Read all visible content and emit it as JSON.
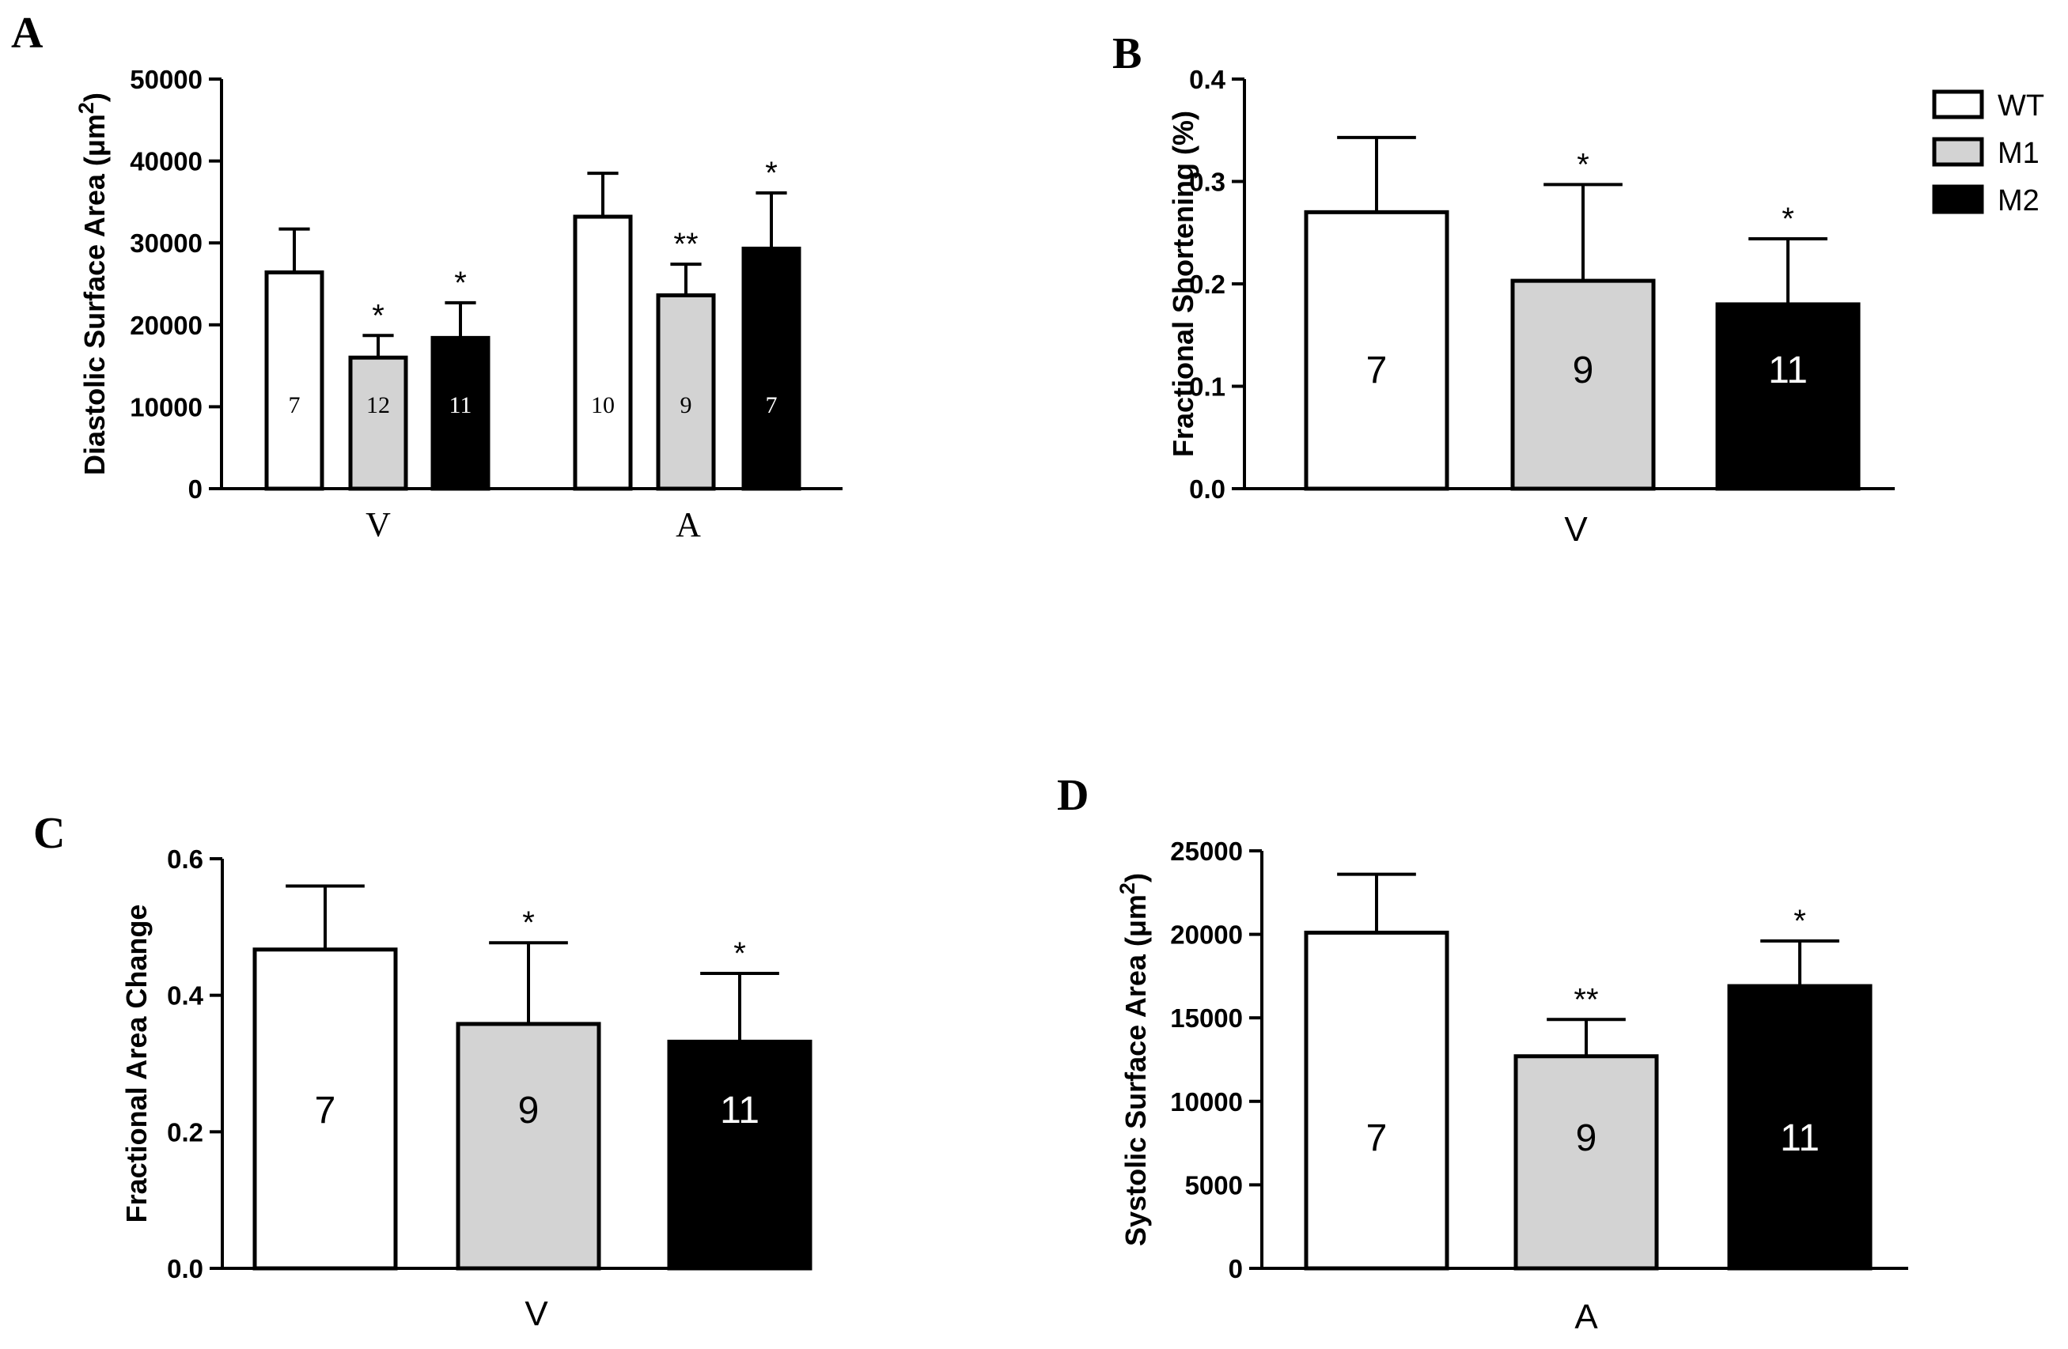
{
  "legend": {
    "items": [
      {
        "label": "WT",
        "color": "#ffffff"
      },
      {
        "label": "M1",
        "color": "#d3d3d3"
      },
      {
        "label": "M2",
        "color": "#000000"
      }
    ],
    "placement": "top-right"
  },
  "chart_data": [
    {
      "panel": "A",
      "type": "bar",
      "ylabel": "Diastolic Surface Area (μm",
      "ylabel_sup": "2",
      "ylabel_close": ")",
      "ylim": [
        0,
        50000
      ],
      "yticks": [
        0,
        10000,
        20000,
        30000,
        40000,
        50000
      ],
      "ytick_labels": [
        "0",
        "10000",
        "20000",
        "30000",
        "40000",
        "50000"
      ],
      "groups": [
        "V",
        "A"
      ],
      "bars": [
        {
          "group": "V",
          "series": "WT",
          "value": 26400,
          "error": 5300,
          "n": "7",
          "sig": ""
        },
        {
          "group": "V",
          "series": "M1",
          "value": 16000,
          "error": 2700,
          "n": "12",
          "sig": "*"
        },
        {
          "group": "V",
          "series": "M2",
          "value": 18400,
          "error": 4300,
          "n": "11",
          "sig": "*"
        },
        {
          "group": "A",
          "series": "WT",
          "value": 33200,
          "error": 5300,
          "n": "10",
          "sig": ""
        },
        {
          "group": "A",
          "series": "M1",
          "value": 23600,
          "error": 3800,
          "n": "9",
          "sig": "**"
        },
        {
          "group": "A",
          "series": "M2",
          "value": 29300,
          "error": 6800,
          "n": "7",
          "sig": "*"
        }
      ]
    },
    {
      "panel": "B",
      "type": "bar",
      "ylabel": "Fractional Shortening (%)",
      "ylim": [
        0,
        0.4
      ],
      "yticks": [
        0,
        0.1,
        0.2,
        0.3,
        0.4
      ],
      "ytick_labels": [
        "0.0",
        "0.1",
        "0.2",
        "0.3",
        "0.4"
      ],
      "groups": [
        "V"
      ],
      "bars": [
        {
          "group": "V",
          "series": "WT",
          "value": 0.27,
          "error": 0.073,
          "n": "7",
          "sig": ""
        },
        {
          "group": "V",
          "series": "M1",
          "value": 0.203,
          "error": 0.094,
          "n": "9",
          "sig": "*"
        },
        {
          "group": "V",
          "series": "M2",
          "value": 0.18,
          "error": 0.064,
          "n": "11",
          "sig": "*"
        }
      ]
    },
    {
      "panel": "C",
      "type": "bar",
      "ylabel": "Fractional Area Change",
      "ylim": [
        0,
        0.6
      ],
      "yticks": [
        0,
        0.2,
        0.4,
        0.6
      ],
      "ytick_labels": [
        "0.0",
        "0.2",
        "0.4",
        "0.6"
      ],
      "groups": [
        "V"
      ],
      "bars": [
        {
          "group": "V",
          "series": "WT",
          "value": 0.467,
          "error": 0.093,
          "n": "7",
          "sig": ""
        },
        {
          "group": "V",
          "series": "M1",
          "value": 0.358,
          "error": 0.119,
          "n": "9",
          "sig": "*"
        },
        {
          "group": "V",
          "series": "M2",
          "value": 0.332,
          "error": 0.1,
          "n": "11",
          "sig": "*"
        }
      ]
    },
    {
      "panel": "D",
      "type": "bar",
      "ylabel": "Systolic Surface Area (μm",
      "ylabel_sup": "2",
      "ylabel_close": ")",
      "ylim": [
        0,
        25000
      ],
      "yticks": [
        0,
        5000,
        10000,
        15000,
        20000,
        25000
      ],
      "ytick_labels": [
        "0",
        "5000",
        "10000",
        "15000",
        "20000",
        "25000"
      ],
      "groups": [
        "A"
      ],
      "bars": [
        {
          "group": "A",
          "series": "WT",
          "value": 20100,
          "error": 3500,
          "n": "7",
          "sig": ""
        },
        {
          "group": "A",
          "series": "M1",
          "value": 12700,
          "error": 2200,
          "n": "9",
          "sig": "**"
        },
        {
          "group": "A",
          "series": "M2",
          "value": 16900,
          "error": 2700,
          "n": "11",
          "sig": "*"
        }
      ]
    }
  ]
}
